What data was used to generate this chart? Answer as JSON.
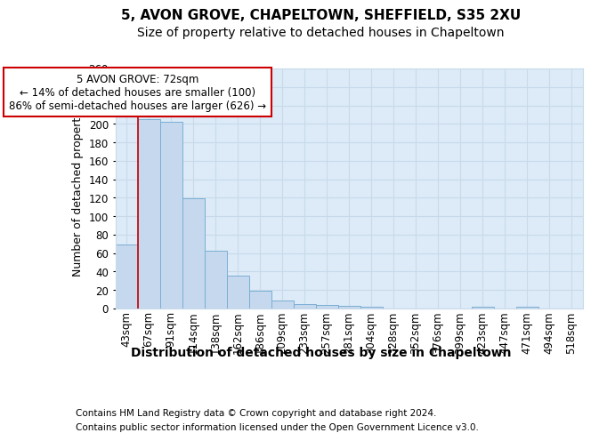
{
  "title1": "5, AVON GROVE, CHAPELTOWN, SHEFFIELD, S35 2XU",
  "title2": "Size of property relative to detached houses in Chapeltown",
  "xlabel": "Distribution of detached houses by size in Chapeltown",
  "ylabel": "Number of detached properties",
  "footnote1": "Contains HM Land Registry data © Crown copyright and database right 2024.",
  "footnote2": "Contains public sector information licensed under the Open Government Licence v3.0.",
  "bar_labels": [
    "43sqm",
    "67sqm",
    "91sqm",
    "114sqm",
    "138sqm",
    "162sqm",
    "186sqm",
    "209sqm",
    "233sqm",
    "257sqm",
    "281sqm",
    "304sqm",
    "328sqm",
    "352sqm",
    "376sqm",
    "399sqm",
    "423sqm",
    "447sqm",
    "471sqm",
    "494sqm",
    "518sqm"
  ],
  "bar_values": [
    69,
    205,
    202,
    119,
    63,
    36,
    19,
    9,
    5,
    4,
    3,
    2,
    0,
    0,
    0,
    0,
    2,
    0,
    2,
    0,
    0
  ],
  "bar_color": "#c5d8ed",
  "bar_edge_color": "#7aafd4",
  "grid_color": "#c8daea",
  "background_color": "#ddeaf7",
  "vline_x": 0.5,
  "vline_color": "#cc0000",
  "annotation_text": "5 AVON GROVE: 72sqm\n← 14% of detached houses are smaller (100)\n86% of semi-detached houses are larger (626) →",
  "annotation_box_color": "#ffffff",
  "annotation_box_edge": "#cc0000",
  "ylim": [
    0,
    260
  ],
  "yticks": [
    0,
    20,
    40,
    60,
    80,
    100,
    120,
    140,
    160,
    180,
    200,
    220,
    240,
    260
  ],
  "title1_fontsize": 11,
  "title2_fontsize": 10,
  "xlabel_fontsize": 10,
  "ylabel_fontsize": 9,
  "tick_fontsize": 8.5,
  "annotation_fontsize": 8.5,
  "footnote_fontsize": 7.5
}
